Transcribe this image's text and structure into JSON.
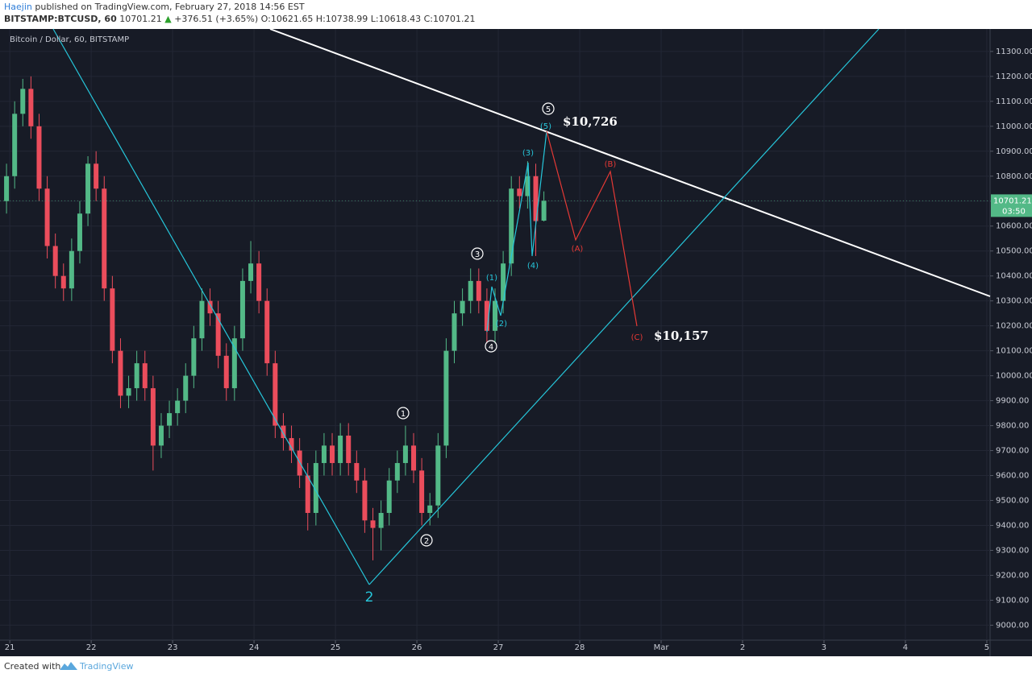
{
  "header": {
    "author": "Haejin",
    "published": "published on TradingView.com, February 27, 2018 14:56 EST",
    "symbol": "BITSTAMP:BTCUSD, 60",
    "last": "10701.21",
    "change": "+376.51 (+3.65%)",
    "ohlc": "O:10621.65 H:10738.99 L:10618.43 C:10701.21"
  },
  "footer": {
    "created": "Created with",
    "brand": "TradingView"
  },
  "chart_data": {
    "type": "candlestick",
    "title": "Bitcoin / Dollar, 60, BITSTAMP",
    "up_color": "#53b987",
    "down_color": "#eb4d5c",
    "grid": true,
    "x": [
      -0.04,
      0.06,
      0.16,
      0.26,
      0.36,
      0.46,
      0.56,
      0.66,
      0.76,
      0.86,
      0.96,
      1.06,
      1.16,
      1.26,
      1.36,
      1.46,
      1.56,
      1.66,
      1.76,
      1.86,
      1.96,
      2.06,
      2.16,
      2.26,
      2.36,
      2.46,
      2.56,
      2.66,
      2.76,
      2.86,
      2.96,
      3.06,
      3.16,
      3.26,
      3.36,
      3.46,
      3.56,
      3.66,
      3.76,
      3.86,
      3.96,
      4.06,
      4.16,
      4.26,
      4.36,
      4.46,
      4.56,
      4.66,
      4.76,
      4.86,
      4.96,
      5.06,
      5.16,
      5.26,
      5.36,
      5.46,
      5.56,
      5.66,
      5.76,
      5.86,
      5.96,
      6.06,
      6.16,
      6.26,
      6.36,
      6.46,
      6.56
    ],
    "open": [
      10700,
      10800,
      11050,
      11150,
      11000,
      10750,
      10520,
      10400,
      10350,
      10500,
      10650,
      10850,
      10750,
      10350,
      10100,
      9920,
      9950,
      10050,
      9950,
      9720,
      9800,
      9850,
      9900,
      10000,
      10150,
      10300,
      10250,
      10080,
      9950,
      10150,
      10380,
      10450,
      10300,
      10050,
      9800,
      9750,
      9700,
      9600,
      9450,
      9650,
      9720,
      9650,
      9760,
      9650,
      9580,
      9420,
      9390,
      9450,
      9580,
      9650,
      9720,
      9620,
      9450,
      9480,
      9720,
      10100,
      10250,
      10300,
      10380,
      10300,
      10180,
      10300,
      10450,
      10750,
      10720,
      10800,
      10621.65
    ],
    "high": [
      10850,
      11100,
      11190,
      11200,
      11050,
      10800,
      10570,
      10450,
      10550,
      10700,
      10880,
      10900,
      10800,
      10400,
      10150,
      10000,
      10100,
      10100,
      10000,
      9850,
      9900,
      9950,
      10050,
      10200,
      10350,
      10350,
      10300,
      10130,
      10200,
      10430,
      10540,
      10500,
      10350,
      10100,
      9850,
      9800,
      9750,
      9650,
      9700,
      9770,
      9770,
      9810,
      9810,
      9700,
      9630,
      9470,
      9500,
      9630,
      9700,
      9800,
      9770,
      9670,
      9530,
      9770,
      10150,
      10300,
      10350,
      10430,
      10430,
      10350,
      10350,
      10500,
      10800,
      10800,
      10860,
      10850,
      10738.99
    ],
    "low": [
      10650,
      10750,
      11000,
      10950,
      10700,
      10470,
      10350,
      10300,
      10300,
      10450,
      10600,
      10700,
      10300,
      10050,
      9870,
      9870,
      9900,
      9900,
      9620,
      9670,
      9750,
      9800,
      9850,
      9950,
      10100,
      10200,
      10030,
      9900,
      9900,
      10100,
      10330,
      10250,
      10000,
      9750,
      9700,
      9650,
      9550,
      9380,
      9400,
      9600,
      9600,
      9600,
      9600,
      9530,
      9370,
      9260,
      9300,
      9400,
      9530,
      9600,
      9570,
      9400,
      9400,
      9430,
      9670,
      10050,
      10200,
      10250,
      10250,
      10130,
      10130,
      10250,
      10400,
      10670,
      10670,
      10480,
      10618.43
    ],
    "close": [
      10800,
      11050,
      11150,
      11000,
      10750,
      10520,
      10400,
      10350,
      10500,
      10650,
      10850,
      10750,
      10350,
      10100,
      9920,
      9950,
      10050,
      9950,
      9720,
      9800,
      9850,
      9900,
      10000,
      10150,
      10300,
      10250,
      10080,
      9950,
      10150,
      10380,
      10450,
      10300,
      10050,
      9800,
      9750,
      9700,
      9600,
      9450,
      9650,
      9720,
      9650,
      9760,
      9650,
      9580,
      9420,
      9390,
      9450,
      9580,
      9650,
      9720,
      9620,
      9450,
      9480,
      9720,
      10100,
      10250,
      10300,
      10380,
      10300,
      10180,
      10300,
      10450,
      10750,
      10720,
      10800,
      10620,
      10701.21
    ],
    "xlim": [
      -0.12,
      12.04
    ],
    "xticks": [
      {
        "value": 0,
        "label": "21"
      },
      {
        "value": 1,
        "label": "22"
      },
      {
        "value": 2,
        "label": "23"
      },
      {
        "value": 3,
        "label": "24"
      },
      {
        "value": 4,
        "label": "25"
      },
      {
        "value": 5,
        "label": "26"
      },
      {
        "value": 6,
        "label": "27"
      },
      {
        "value": 7,
        "label": "28"
      },
      {
        "value": 8,
        "label": "Mar"
      },
      {
        "value": 9,
        "label": "2"
      },
      {
        "value": 10,
        "label": "3"
      },
      {
        "value": 11,
        "label": "4"
      },
      {
        "value": 12,
        "label": "5"
      }
    ],
    "ylim": [
      8940,
      11390
    ],
    "yticks": [
      {
        "value": 9000,
        "label": "9000.00"
      },
      {
        "value": 9100,
        "label": "9100.00"
      },
      {
        "value": 9200,
        "label": "9200.00"
      },
      {
        "value": 9300,
        "label": "9300.00"
      },
      {
        "value": 9400,
        "label": "9400.00"
      },
      {
        "value": 9500,
        "label": "9500.00"
      },
      {
        "value": 9600,
        "label": "9600.00"
      },
      {
        "value": 9700,
        "label": "9700.00"
      },
      {
        "value": 9800,
        "label": "9800.00"
      },
      {
        "value": 9900,
        "label": "9900.00"
      },
      {
        "value": 10000,
        "label": "10000.00"
      },
      {
        "value": 10100,
        "label": "10100.00"
      },
      {
        "value": 10200,
        "label": "10200.00"
      },
      {
        "value": 10300,
        "label": "10300.00"
      },
      {
        "value": 10400,
        "label": "10400.00"
      },
      {
        "value": 10500,
        "label": "10500.00"
      },
      {
        "value": 10600,
        "label": "10600.00"
      },
      {
        "value": 10700,
        "label": "10700.00"
      },
      {
        "value": 10800,
        "label": "10800.00"
      },
      {
        "value": 10900,
        "label": "10900.00"
      },
      {
        "value": 11000,
        "label": "11000.00"
      },
      {
        "value": 11100,
        "label": "11100.00"
      },
      {
        "value": 11200,
        "label": "11200.00"
      },
      {
        "value": 11300,
        "label": "11300.00"
      }
    ],
    "countdown": "03:50",
    "annotations": {
      "w1": "1",
      "w2": "2",
      "w3": "3",
      "w4": "4",
      "w5": "5",
      "s1": "(1)",
      "s2": "(2)",
      "s3": "(3)",
      "s4": "(4)",
      "s5": "(5)",
      "a": "(A)",
      "b": "(B)",
      "c": "(C)",
      "wave2": "2",
      "target_high": "$10,726",
      "target_low": "$10,157"
    }
  }
}
